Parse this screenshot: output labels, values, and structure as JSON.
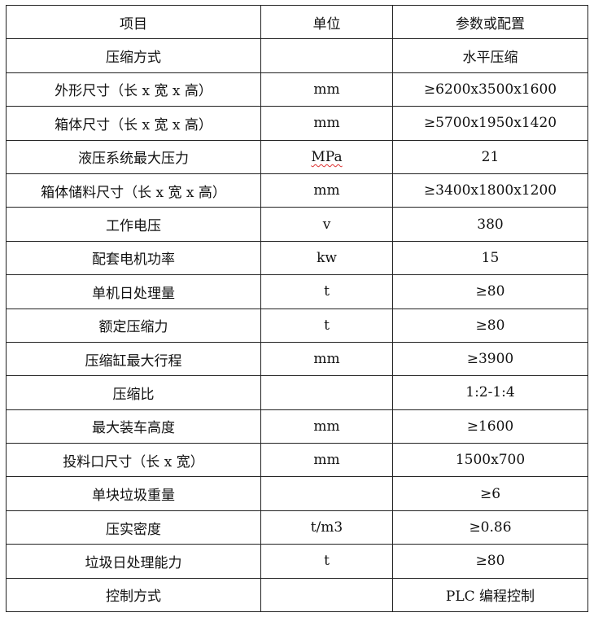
{
  "table": {
    "headers": [
      "项目",
      "单位",
      "参数或配置"
    ],
    "rows": [
      [
        "压缩方式",
        "",
        "水平压缩"
      ],
      [
        "外形尺寸（长 x 宽 x 高）",
        "mm",
        "≥6200x3500x1600"
      ],
      [
        "箱体尺寸（长 x 宽 x 高）",
        "mm",
        "≥5700x1950x1420"
      ],
      [
        "液压系统最大压力",
        "MPa",
        "21"
      ],
      [
        "箱体储料尺寸（长 x 宽 x 高）",
        "mm",
        "≥3400x1800x1200"
      ],
      [
        "工作电压",
        "v",
        "380"
      ],
      [
        "配套电机功率",
        "kw",
        "15"
      ],
      [
        "单机日处理量",
        "t",
        "≥80"
      ],
      [
        "额定压缩力",
        "t",
        "≥80"
      ],
      [
        "压缩缸最大行程",
        "mm",
        "≥3900"
      ],
      [
        "压缩比",
        "",
        "1:2-1:4"
      ],
      [
        "最大装车高度",
        "mm",
        "≥1600"
      ],
      [
        "投料口尺寸（长 x 宽）",
        "mm",
        "1500x700"
      ],
      [
        "单块垃圾重量",
        "",
        "≥6"
      ],
      [
        "压实密度",
        "t/m3",
        "≥0.86"
      ],
      [
        "垃圾日处理能力",
        "t",
        "≥80"
      ],
      [
        "控制方式",
        "",
        "PLC 编程控制"
      ]
    ]
  }
}
